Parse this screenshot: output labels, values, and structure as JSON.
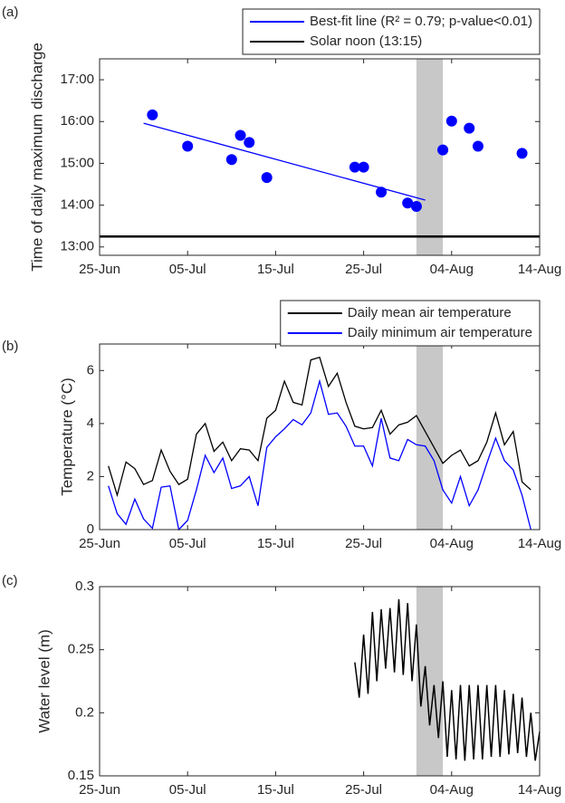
{
  "chart_data": [
    {
      "type": "scatter",
      "label": "(a)",
      "y_label": "Time of daily maximum discharge",
      "x": [
        "01-Jul",
        "05-Jul",
        "10-Jul",
        "11-Jul",
        "12-Jul",
        "14-Jul",
        "24-Jul",
        "25-Jul",
        "27-Jul",
        "30-Jul",
        "31-Jul",
        "03-Aug",
        "04-Aug",
        "06-Aug",
        "07-Aug",
        "12-Aug"
      ],
      "values": [
        16.16,
        15.41,
        15.09,
        15.67,
        15.5,
        14.66,
        14.91,
        14.91,
        14.31,
        14.05,
        13.97,
        15.32,
        16.01,
        15.84,
        15.41,
        15.24
      ],
      "color": "#0000ff",
      "series": [
        {
          "name": "Best-fit line (R² = 0.79; p-value<0.01)",
          "color": "#0000ff",
          "x": [
            "30-Jun",
            "01-Aug"
          ],
          "values": [
            15.96,
            14.12
          ]
        },
        {
          "name": "Solar noon (13:15)",
          "color": "#000000",
          "x": [
            "25-Jun",
            "14-Aug"
          ],
          "values": [
            13.25,
            13.25
          ]
        }
      ],
      "legend": "above",
      "shaded_x": [
        "31-Jul",
        "03-Aug"
      ],
      "shade_color": "#c8c8c8",
      "xlim": [
        "25-Jun",
        "14-Aug"
      ],
      "xticks": [
        "25-Jun",
        "05-Jul",
        "15-Jul",
        "25-Jul",
        "04-Aug",
        "14-Aug"
      ],
      "ylim": [
        12.8,
        17.5
      ],
      "yticks": [
        {
          "value": 13,
          "label": "13:00"
        },
        {
          "value": 14,
          "label": "14:00"
        },
        {
          "value": 15,
          "label": "15:00"
        },
        {
          "value": 16,
          "label": "16:00"
        },
        {
          "value": 17,
          "label": "17:00"
        }
      ],
      "grid": false
    },
    {
      "type": "line",
      "label": "(b)",
      "y_label": "Temperature (°C)",
      "x": [
        "26-Jun",
        "27-Jun",
        "28-Jun",
        "29-Jun",
        "30-Jun",
        "01-Jul",
        "02-Jul",
        "03-Jul",
        "04-Jul",
        "05-Jul",
        "06-Jul",
        "07-Jul",
        "08-Jul",
        "09-Jul",
        "10-Jul",
        "11-Jul",
        "12-Jul",
        "13-Jul",
        "14-Jul",
        "15-Jul",
        "16-Jul",
        "17-Jul",
        "18-Jul",
        "19-Jul",
        "20-Jul",
        "21-Jul",
        "22-Jul",
        "23-Jul",
        "24-Jul",
        "25-Jul",
        "26-Jul",
        "27-Jul",
        "28-Jul",
        "29-Jul",
        "30-Jul",
        "31-Jul",
        "01-Aug",
        "02-Aug",
        "03-Aug",
        "04-Aug",
        "05-Aug",
        "06-Aug",
        "07-Aug",
        "08-Aug",
        "09-Aug",
        "10-Aug",
        "11-Aug",
        "12-Aug",
        "13-Aug"
      ],
      "series": [
        {
          "name": "Daily mean air temperature",
          "color": "#000000",
          "values": [
            2.4,
            1.3,
            2.55,
            2.3,
            1.7,
            1.85,
            3.0,
            2.2,
            1.7,
            1.9,
            3.6,
            4.0,
            2.95,
            3.3,
            2.6,
            3.05,
            3.0,
            2.6,
            4.2,
            4.5,
            5.6,
            4.8,
            4.7,
            6.4,
            6.5,
            5.4,
            5.9,
            4.8,
            3.9,
            3.8,
            3.85,
            4.5,
            3.6,
            3.95,
            4.05,
            4.3,
            3.7,
            3.1,
            2.5,
            2.8,
            3.0,
            2.4,
            2.6,
            3.3,
            4.4,
            3.2,
            3.7,
            1.8,
            1.5
          ]
        },
        {
          "name": "Daily minimum air temperature",
          "color": "#0000ff",
          "values": [
            1.65,
            0.6,
            0.2,
            1.15,
            0.4,
            0.05,
            1.6,
            1.65,
            0,
            0.35,
            1.5,
            2.8,
            2.15,
            2.7,
            1.55,
            1.65,
            2.0,
            0.9,
            3.1,
            3.5,
            3.8,
            4.15,
            3.95,
            4.4,
            5.6,
            4.35,
            4.4,
            3.9,
            3.15,
            3.15,
            2.4,
            4.2,
            2.7,
            2.6,
            3.4,
            3.2,
            3.15,
            2.6,
            1.5,
            1.0,
            2.0,
            0.9,
            1.5,
            2.5,
            3.45,
            2.6,
            2.25,
            1.3,
            0
          ]
        }
      ],
      "legend": "above",
      "shaded_x": [
        "31-Jul",
        "03-Aug"
      ],
      "shade_color": "#c8c8c8",
      "xlim": [
        "25-Jun",
        "14-Aug"
      ],
      "xticks": [
        "25-Jun",
        "05-Jul",
        "15-Jul",
        "25-Jul",
        "04-Aug",
        "14-Aug"
      ],
      "ylim": [
        0,
        7
      ],
      "yticks": [
        0,
        2,
        4,
        6
      ],
      "grid": false
    },
    {
      "type": "line",
      "label": "(c)",
      "y_label": "Water level (m)",
      "x": [
        "24-Jul 00:00",
        "24-Jul 12:00",
        "25-Jul 00:00",
        "25-Jul 12:00",
        "26-Jul 00:00",
        "26-Jul 12:00",
        "27-Jul 00:00",
        "27-Jul 12:00",
        "28-Jul 00:00",
        "28-Jul 12:00",
        "29-Jul 00:00",
        "29-Jul 12:00",
        "30-Jul 00:00",
        "30-Jul 12:00",
        "31-Jul 00:00",
        "31-Jul 12:00",
        "01-Aug 00:00",
        "01-Aug 12:00",
        "02-Aug 00:00",
        "02-Aug 12:00",
        "03-Aug 00:00",
        "03-Aug 12:00",
        "04-Aug 00:00",
        "04-Aug 12:00",
        "05-Aug 00:00",
        "05-Aug 12:00",
        "06-Aug 00:00",
        "06-Aug 12:00",
        "07-Aug 00:00",
        "07-Aug 12:00",
        "08-Aug 00:00",
        "08-Aug 12:00",
        "09-Aug 00:00",
        "09-Aug 12:00",
        "10-Aug 00:00",
        "10-Aug 12:00",
        "11-Aug 00:00",
        "11-Aug 12:00",
        "12-Aug 00:00",
        "12-Aug 12:00",
        "13-Aug 00:00",
        "13-Aug 12:00",
        "14-Aug 00:00"
      ],
      "values": [
        0.24,
        0.212,
        0.262,
        0.215,
        0.28,
        0.225,
        0.282,
        0.235,
        0.283,
        0.232,
        0.29,
        0.23,
        0.287,
        0.225,
        0.27,
        0.205,
        0.237,
        0.19,
        0.222,
        0.18,
        0.225,
        0.165,
        0.218,
        0.163,
        0.222,
        0.162,
        0.222,
        0.163,
        0.222,
        0.163,
        0.222,
        0.165,
        0.222,
        0.165,
        0.218,
        0.167,
        0.215,
        0.168,
        0.212,
        0.165,
        0.2,
        0.162,
        0.185
      ],
      "color": "#000000",
      "shaded_x": [
        "31-Jul",
        "03-Aug"
      ],
      "shade_color": "#c8c8c8",
      "xlim": [
        "25-Jun",
        "14-Aug"
      ],
      "xticks": [
        "25-Jun",
        "05-Jul",
        "15-Jul",
        "25-Jul",
        "04-Aug",
        "14-Aug"
      ],
      "ylim": [
        0.15,
        0.3
      ],
      "yticks": [
        0.15,
        0.2,
        0.25,
        0.3
      ],
      "grid": false
    }
  ]
}
